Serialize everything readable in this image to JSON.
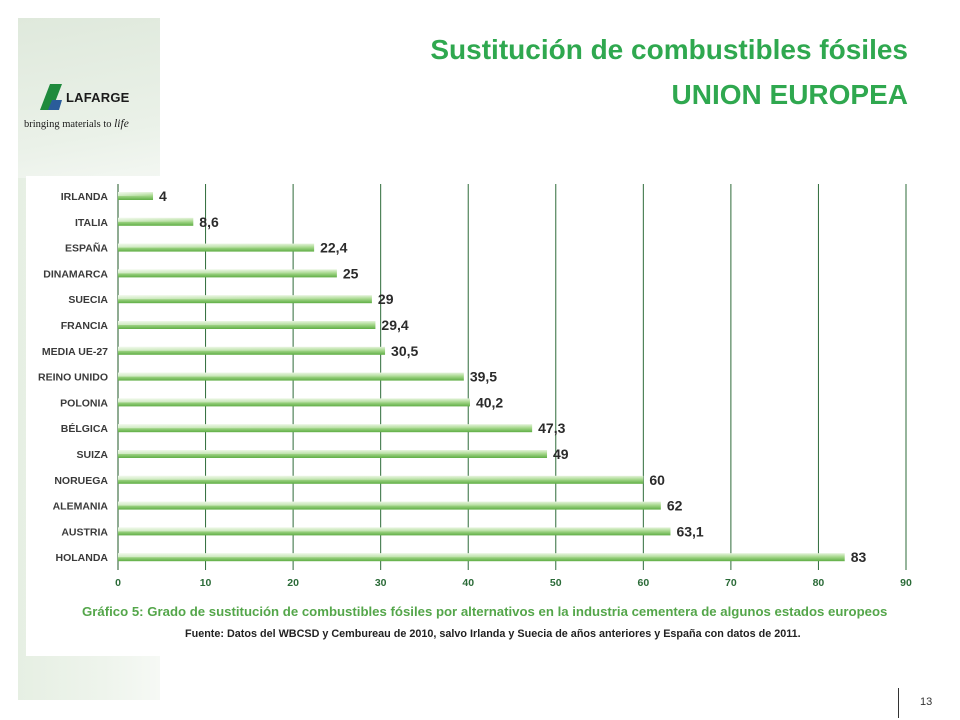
{
  "header": {
    "title_line1": "Sustitución de combustibles fósiles",
    "title_line2": "UNION EUROPEA"
  },
  "logo": {
    "word": "LAFARGE",
    "tagline_prefix": "bringing materials to",
    "tagline_word": "life"
  },
  "colors": {
    "title": "#2fa84f",
    "bar": "#7cc25e",
    "bar_light": "#c7e6b3",
    "grid": "#2e6b3a"
  },
  "chart_data": {
    "type": "bar",
    "orientation": "horizontal",
    "categories": [
      "IRLANDA",
      "ITALIA",
      "ESPAÑA",
      "DINAMARCA",
      "SUECIA",
      "FRANCIA",
      "MEDIA UE-27",
      "REINO UNIDO",
      "POLONIA",
      "BÉLGICA",
      "SUIZA",
      "NORUEGA",
      "ALEMANIA",
      "AUSTRIA",
      "HOLANDA"
    ],
    "values": [
      4,
      8.6,
      22.4,
      25,
      29,
      29.4,
      30.5,
      39.5,
      40.2,
      47.3,
      49,
      60,
      62,
      63.1,
      83
    ],
    "value_labels": [
      "4",
      "8,6",
      "22,4",
      "25",
      "29",
      "29,4",
      "30,5",
      "39,5",
      "40,2",
      "47,3",
      "49",
      "60",
      "62",
      "63,1",
      "83"
    ],
    "xlim": [
      0,
      90
    ],
    "xticks": [
      0,
      10,
      20,
      30,
      40,
      50,
      60,
      70,
      80,
      90
    ],
    "grid": true,
    "caption": "Gráfico 5: Grado de sustitución de combustibles fósiles por alternativos en la industria cementera de algunos estados europeos",
    "source": "Fuente: Datos del WBCSD y Cembureau de 2010, salvo Irlanda y Suecia de años anteriores y España con datos de 2011."
  },
  "footer": {
    "page_number": "13"
  }
}
